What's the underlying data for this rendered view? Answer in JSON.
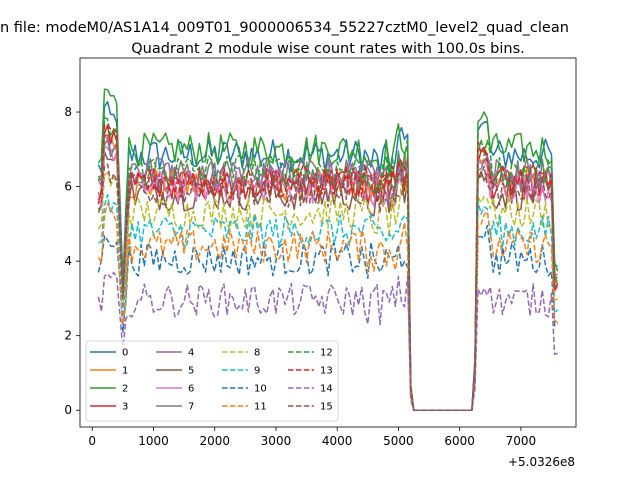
{
  "suptitle": "n file: modeM0/AS1A14_009T01_9000006534_55227cztM0_level2_quad_clean",
  "chart_data": {
    "type": "line",
    "title": "Quadrant 2 module wise count rates with 100.0s bins.",
    "xlabel": "",
    "ylabel": "",
    "x_offset_label": "+5.0326e8",
    "xlim": [
      -200,
      7900
    ],
    "ylim": [
      -0.45,
      9.45
    ],
    "xticks": [
      0,
      1000,
      2000,
      3000,
      4000,
      5000,
      6000,
      7000
    ],
    "xtick_labels": [
      "0",
      "1000",
      "2000",
      "3000",
      "4000",
      "5000",
      "6000",
      "7000"
    ],
    "yticks": [
      0,
      2,
      4,
      6,
      8
    ],
    "ytick_labels": [
      "0",
      "2",
      "4",
      "6",
      "8"
    ],
    "x_start": 100,
    "x_step": 50,
    "num_points": 151,
    "gap_range": [
      5250,
      6200
    ],
    "legend": {
      "placement": "lower-left",
      "columns": 4
    },
    "series": [
      {
        "name": "0",
        "color": "#1f77b4",
        "dash": "solid",
        "level": 6.85,
        "peak_start": 8.1,
        "peak_end": 7.8,
        "dip": 3.4
      },
      {
        "name": "1",
        "color": "#ff7f0e",
        "dash": "solid",
        "level": 6.05,
        "peak_start": 7.4,
        "peak_end": 6.8,
        "dip": 3.1
      },
      {
        "name": "2",
        "color": "#2ca02c",
        "dash": "solid",
        "level": 7.0,
        "peak_start": 8.6,
        "peak_end": 8.0,
        "dip": 3.6
      },
      {
        "name": "3",
        "color": "#d62728",
        "dash": "solid",
        "level": 6.1,
        "peak_start": 7.5,
        "peak_end": 7.0,
        "dip": 3.1
      },
      {
        "name": "4",
        "color": "#9467bd",
        "dash": "solid",
        "level": 6.25,
        "peak_start": 7.3,
        "peak_end": 6.9,
        "dip": 3.3
      },
      {
        "name": "5",
        "color": "#8c564b",
        "dash": "solid",
        "level": 5.8,
        "peak_start": 6.9,
        "peak_end": 6.4,
        "dip": 3.0
      },
      {
        "name": "6",
        "color": "#e377c2",
        "dash": "solid",
        "level": 6.0,
        "peak_start": 7.1,
        "peak_end": 6.7,
        "dip": 3.1
      },
      {
        "name": "7",
        "color": "#7f7f7f",
        "dash": "solid",
        "level": 6.35,
        "peak_start": 7.2,
        "peak_end": 6.8,
        "dip": 3.3
      },
      {
        "name": "8",
        "color": "#bcbd22",
        "dash": "dashed",
        "level": 5.3,
        "peak_start": 6.3,
        "peak_end": 5.9,
        "dip": 2.8
      },
      {
        "name": "9",
        "color": "#17becf",
        "dash": "dashed",
        "level": 4.8,
        "peak_start": 5.6,
        "peak_end": 5.5,
        "dip": 2.5
      },
      {
        "name": "10",
        "color": "#1f77b4",
        "dash": "dashed",
        "level": 4.05,
        "peak_start": 4.7,
        "peak_end": 4.9,
        "dip": 2.1
      },
      {
        "name": "11",
        "color": "#ff7f0e",
        "dash": "dashed",
        "level": 4.4,
        "peak_start": 5.4,
        "peak_end": 5.2,
        "dip": 2.3
      },
      {
        "name": "12",
        "color": "#2ca02c",
        "dash": "dashed",
        "level": 6.45,
        "peak_start": 7.7,
        "peak_end": 7.2,
        "dip": 3.3
      },
      {
        "name": "13",
        "color": "#d62728",
        "dash": "dashed",
        "level": 6.15,
        "peak_start": 7.6,
        "peak_end": 7.1,
        "dip": 3.1
      },
      {
        "name": "14",
        "color": "#9467bd",
        "dash": "dashed",
        "level": 2.95,
        "peak_start": 3.6,
        "peak_end": 3.4,
        "dip": 1.6
      },
      {
        "name": "15",
        "color": "#8c564b",
        "dash": "dashed",
        "level": 5.9,
        "peak_start": 6.5,
        "peak_end": 6.4,
        "dip": 3.0
      }
    ]
  }
}
